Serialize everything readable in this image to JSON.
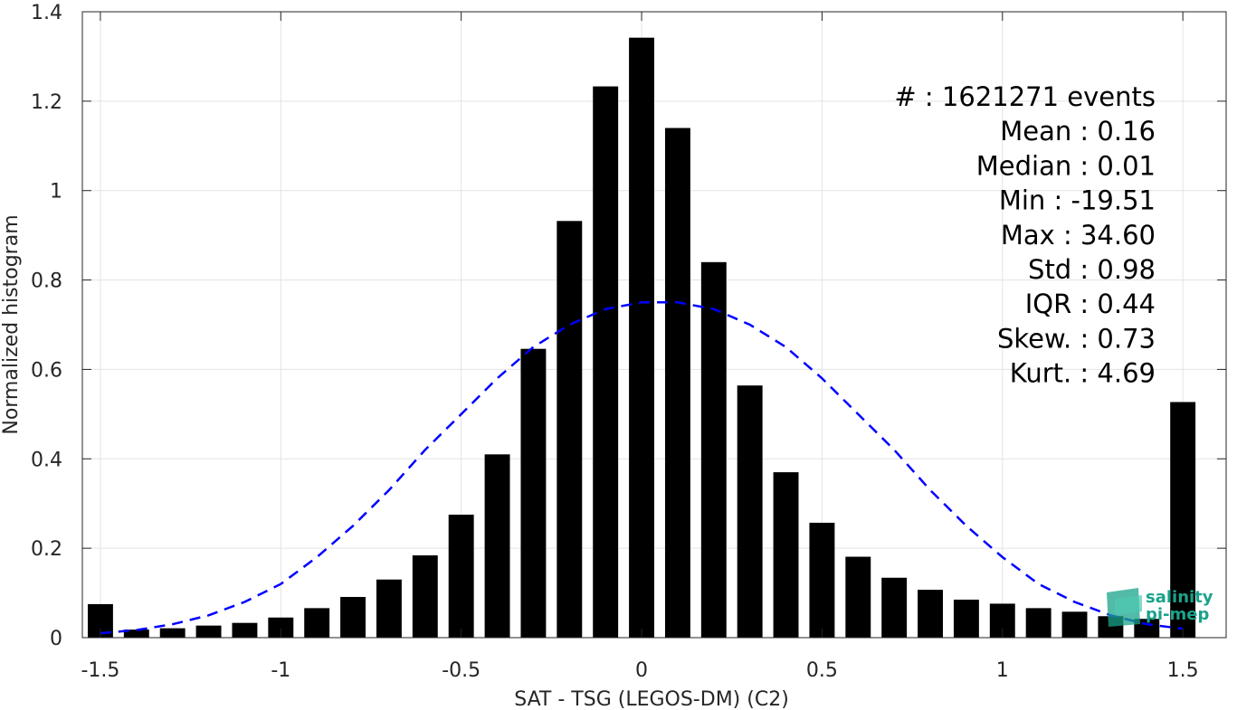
{
  "chart_data": {
    "type": "bar",
    "xlabel": "SAT - TSG (LEGOS-DM) (C2)",
    "ylabel": "Normalized histogram",
    "xlim": [
      -1.55,
      1.62
    ],
    "ylim": [
      0,
      1.4
    ],
    "grid": true,
    "x_ticks": [
      -1.5,
      -1,
      -0.5,
      0,
      0.5,
      1,
      1.5
    ],
    "x_tick_labels": [
      "-1.5",
      "-1",
      "-0.5",
      "0",
      "0.5",
      "1",
      "1.5"
    ],
    "y_ticks": [
      0,
      0.2,
      0.4,
      0.6,
      0.8,
      1,
      1.2,
      1.4
    ],
    "y_tick_labels": [
      "0",
      "0.2",
      "0.4",
      "0.6",
      "0.8",
      "1",
      "1.2",
      "1.4"
    ],
    "bar_width": 0.07,
    "bar_color": "#000000",
    "bars": {
      "x": [
        -1.5,
        -1.4,
        -1.3,
        -1.2,
        -1.1,
        -1.0,
        -0.9,
        -0.8,
        -0.7,
        -0.6,
        -0.5,
        -0.4,
        -0.3,
        -0.2,
        -0.1,
        0.0,
        0.1,
        0.2,
        0.3,
        0.4,
        0.5,
        0.6,
        0.7,
        0.8,
        0.9,
        1.0,
        1.1,
        1.2,
        1.3,
        1.4,
        1.5
      ],
      "values": [
        0.075,
        0.018,
        0.021,
        0.027,
        0.033,
        0.045,
        0.066,
        0.091,
        0.13,
        0.184,
        0.275,
        0.41,
        0.646,
        0.932,
        1.233,
        1.342,
        1.14,
        0.84,
        0.564,
        0.37,
        0.257,
        0.181,
        0.134,
        0.107,
        0.085,
        0.076,
        0.066,
        0.058,
        0.048,
        0.042,
        0.527
      ]
    },
    "fit_curve": {
      "style": "dashed",
      "color": "#0000ff",
      "x": [
        -1.5,
        -1.4,
        -1.3,
        -1.2,
        -1.1,
        -1.0,
        -0.9,
        -0.8,
        -0.7,
        -0.6,
        -0.5,
        -0.4,
        -0.3,
        -0.2,
        -0.1,
        0.0,
        0.1,
        0.2,
        0.3,
        0.4,
        0.5,
        0.6,
        0.7,
        0.8,
        0.9,
        1.0,
        1.1,
        1.2,
        1.3,
        1.4,
        1.5
      ],
      "y": [
        0.01,
        0.017,
        0.03,
        0.05,
        0.08,
        0.12,
        0.18,
        0.25,
        0.33,
        0.42,
        0.5,
        0.58,
        0.65,
        0.7,
        0.735,
        0.75,
        0.75,
        0.735,
        0.7,
        0.65,
        0.58,
        0.5,
        0.42,
        0.33,
        0.25,
        0.18,
        0.12,
        0.08,
        0.05,
        0.03,
        0.02
      ]
    },
    "stats": [
      {
        "label": "#",
        "value": ": 1621271 events"
      },
      {
        "label": "Mean",
        "value": ": 0.16"
      },
      {
        "label": "Median",
        "value": ": 0.01"
      },
      {
        "label": "Min",
        "value": ": -19.51"
      },
      {
        "label": "Max",
        "value": ": 34.60"
      },
      {
        "label": "Std",
        "value": ": 0.98"
      },
      {
        "label": "IQR",
        "value": ": 0.44"
      },
      {
        "label": "Skew.",
        "value": ": 0.73"
      },
      {
        "label": "Kurt.",
        "value": ": 4.69"
      }
    ]
  },
  "logo": {
    "line1": "salinity",
    "line2": "pi-mep",
    "color": "#1aa38a"
  }
}
